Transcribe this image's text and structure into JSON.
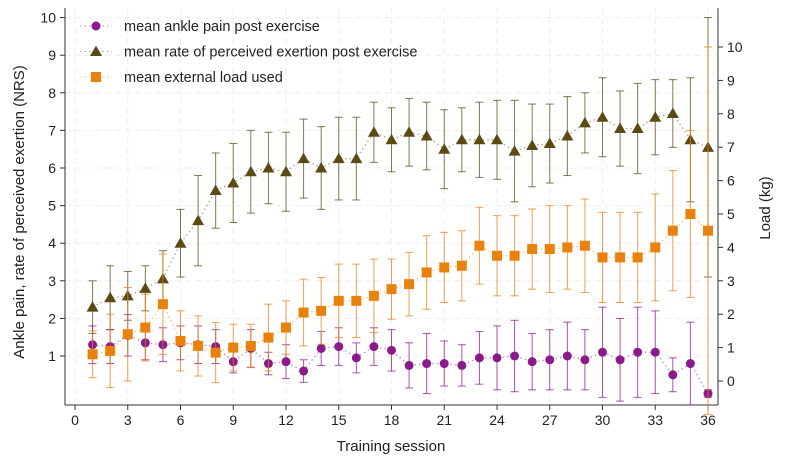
{
  "chart_data": {
    "type": "line",
    "xlabel": "Training session",
    "ylabel": "Ankle pain, rate of perceived exertion (NRS)",
    "y2label": "Load (kg)",
    "xlim": [
      0,
      36
    ],
    "ylim": [
      0,
      10
    ],
    "y2lim": [
      -0.5,
      11
    ],
    "xticks": [
      0,
      3,
      6,
      9,
      12,
      15,
      18,
      21,
      24,
      27,
      30,
      33,
      36
    ],
    "yticks": [
      1,
      2,
      3,
      4,
      5,
      6,
      7,
      8,
      9,
      10
    ],
    "y2ticks": [
      0,
      1,
      2,
      3,
      4,
      5,
      6,
      7,
      8,
      9,
      10
    ],
    "grid": true,
    "legend_position": "top-left",
    "x": [
      1,
      2,
      3,
      4,
      5,
      6,
      7,
      8,
      9,
      10,
      11,
      12,
      13,
      14,
      15,
      16,
      17,
      18,
      19,
      20,
      21,
      22,
      23,
      24,
      25,
      26,
      27,
      28,
      29,
      30,
      31,
      32,
      33,
      34,
      35,
      36
    ],
    "series": [
      {
        "name": "mean ankle pain post exercise",
        "axis": "left",
        "marker": "circle",
        "color": "#8b1a8b",
        "values": [
          1.3,
          1.25,
          1.55,
          1.35,
          1.3,
          1.35,
          1.3,
          1.25,
          0.85,
          1.2,
          0.8,
          0.85,
          0.6,
          1.2,
          1.25,
          0.95,
          1.25,
          1.15,
          0.75,
          0.8,
          0.8,
          0.75,
          0.95,
          0.95,
          1.0,
          0.85,
          0.9,
          1.0,
          0.9,
          1.1,
          0.9,
          1.1,
          1.1,
          0.5,
          0.8,
          0.0
        ],
        "error": [
          0.5,
          0.45,
          0.55,
          0.45,
          0.45,
          0.45,
          0.5,
          0.45,
          0.3,
          0.5,
          0.3,
          0.45,
          0.3,
          0.45,
          0.5,
          0.4,
          0.5,
          0.55,
          0.6,
          0.8,
          0.6,
          0.55,
          0.7,
          0.85,
          0.95,
          0.75,
          0.8,
          0.9,
          0.8,
          1.2,
          1.1,
          1.2,
          1.1,
          0.45,
          1.1,
          0.1
        ]
      },
      {
        "name": "mean rate of perceived exertion post exercise",
        "axis": "left",
        "marker": "triangle",
        "color": "#5c4a14",
        "values": [
          2.3,
          2.55,
          2.6,
          2.8,
          3.05,
          4.0,
          4.6,
          5.4,
          5.6,
          5.9,
          6.0,
          5.9,
          6.25,
          6.0,
          6.25,
          6.25,
          6.95,
          6.75,
          6.95,
          6.85,
          6.5,
          6.75,
          6.75,
          6.75,
          6.45,
          6.6,
          6.65,
          6.85,
          7.2,
          7.35,
          7.05,
          7.05,
          7.35,
          7.45,
          6.75,
          6.55
        ],
        "error": [
          0.7,
          0.85,
          0.65,
          0.6,
          0.75,
          0.9,
          1.2,
          1.0,
          1.05,
          1.1,
          0.95,
          1.05,
          1.05,
          1.1,
          1.1,
          1.1,
          0.8,
          0.85,
          0.9,
          0.9,
          1.05,
          0.85,
          1.0,
          1.05,
          1.35,
          1.1,
          1.05,
          1.05,
          0.8,
          1.05,
          1.0,
          1.2,
          1.0,
          0.9,
          1.65,
          3.45
        ]
      },
      {
        "name": "mean external load used",
        "axis": "right",
        "marker": "square",
        "color": "#e8820c",
        "values": [
          0.8,
          0.9,
          1.4,
          1.6,
          2.3,
          1.2,
          1.05,
          0.85,
          1.0,
          1.05,
          1.3,
          1.6,
          2.05,
          2.1,
          2.4,
          2.4,
          2.55,
          2.75,
          2.9,
          3.25,
          3.4,
          3.45,
          4.05,
          3.75,
          3.75,
          3.95,
          3.95,
          4.0,
          4.05,
          3.7,
          3.7,
          3.7,
          4.0,
          4.5,
          5.0,
          4.5
        ],
        "error": [
          0.7,
          1.1,
          1.4,
          1.0,
          1.5,
          0.9,
          0.9,
          0.9,
          0.7,
          0.65,
          1.0,
          0.8,
          1.0,
          1.0,
          1.1,
          1.1,
          1.1,
          0.9,
          0.95,
          1.1,
          1.05,
          1.05,
          1.15,
          1.2,
          1.2,
          1.2,
          1.3,
          1.25,
          1.4,
          1.35,
          1.35,
          1.35,
          1.6,
          1.8,
          2.5,
          5.5
        ]
      }
    ]
  }
}
